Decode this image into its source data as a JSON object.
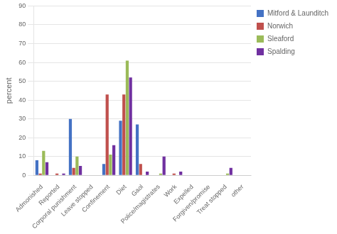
{
  "chart_data": {
    "type": "bar",
    "categories": [
      "Admonished",
      "Reported",
      "Corporal punishment",
      "Leave stopped",
      "Confinement",
      "Diet",
      "Gaol",
      "Police/magistrates",
      "Work",
      "Expelled",
      "Forgiven/promise",
      "Treat stopped",
      "other"
    ],
    "series": [
      {
        "name": "Mitford & Launditch",
        "color": "#4472c4",
        "values": [
          8,
          0,
          30,
          0,
          6,
          29,
          27,
          0,
          0,
          0,
          0,
          0,
          0
        ]
      },
      {
        "name": "Norwich",
        "color": "#c0504d",
        "values": [
          1,
          1,
          4,
          0,
          43,
          43,
          6,
          0,
          1,
          0,
          0,
          0,
          0
        ]
      },
      {
        "name": "Sleaford",
        "color": "#9bbb59",
        "values": [
          13,
          0,
          10,
          0,
          11,
          61,
          0,
          1,
          0,
          0,
          0,
          1,
          0
        ]
      },
      {
        "name": "Spalding",
        "color": "#7030a0",
        "values": [
          7,
          1,
          5,
          0,
          16,
          52,
          2,
          10,
          2,
          0,
          0,
          4,
          0
        ]
      }
    ],
    "ylabel": "percent",
    "ylim": [
      0,
      90
    ],
    "yticks": [
      0,
      10,
      20,
      30,
      40,
      50,
      60,
      70,
      80,
      90
    ],
    "grid": true,
    "legend": "right"
  }
}
